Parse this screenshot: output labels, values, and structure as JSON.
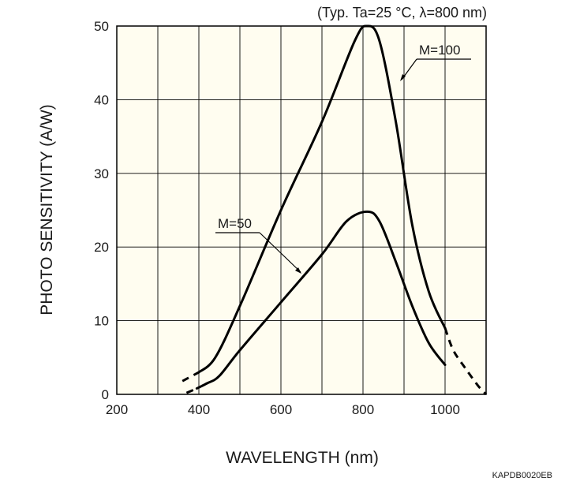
{
  "chart_data": {
    "type": "line",
    "title": "",
    "conditions": "(Typ. Ta=25 °C, λ=800 nm)",
    "xlabel": "WAVELENGTH (nm)",
    "ylabel": "PHOTO SENSITIVITY (A/W)",
    "xlim": [
      200,
      1100
    ],
    "ylim": [
      0,
      50
    ],
    "xticks": [
      200,
      400,
      600,
      800,
      1000
    ],
    "yticks": [
      0,
      10,
      20,
      30,
      40,
      50
    ],
    "grid": true,
    "background": "#fffdf0",
    "line_color": "#000000",
    "series": [
      {
        "name": "M=100",
        "label": "M=100",
        "points": [
          [
            400,
            3
          ],
          [
            440,
            5
          ],
          [
            500,
            12
          ],
          [
            600,
            25
          ],
          [
            700,
            37
          ],
          [
            780,
            48
          ],
          [
            810,
            50
          ],
          [
            840,
            48
          ],
          [
            880,
            37
          ],
          [
            920,
            23
          ],
          [
            960,
            14
          ],
          [
            1000,
            9
          ]
        ],
        "dashed_segments": [
          [
            [
              360,
              1.8
            ],
            [
              400,
              3
            ]
          ],
          [
            [
              1000,
              9
            ],
            [
              1020,
              6
            ],
            [
              1050,
              3.5
            ],
            [
              1080,
              1.2
            ],
            [
              1100,
              0
            ]
          ]
        ]
      },
      {
        "name": "M=50",
        "label": "M=50",
        "points": [
          [
            395,
            0.8
          ],
          [
            420,
            1.5
          ],
          [
            450,
            2.5
          ],
          [
            500,
            6
          ],
          [
            600,
            12.5
          ],
          [
            700,
            19
          ],
          [
            760,
            23.5
          ],
          [
            810,
            24.8
          ],
          [
            840,
            23.5
          ],
          [
            880,
            18
          ],
          [
            920,
            12
          ],
          [
            960,
            7
          ],
          [
            1000,
            4
          ]
        ],
        "dashed_segments": [
          [
            [
              370,
              0.2
            ],
            [
              395,
              0.8
            ]
          ]
        ]
      }
    ],
    "code": "KAPDB0020EB"
  }
}
